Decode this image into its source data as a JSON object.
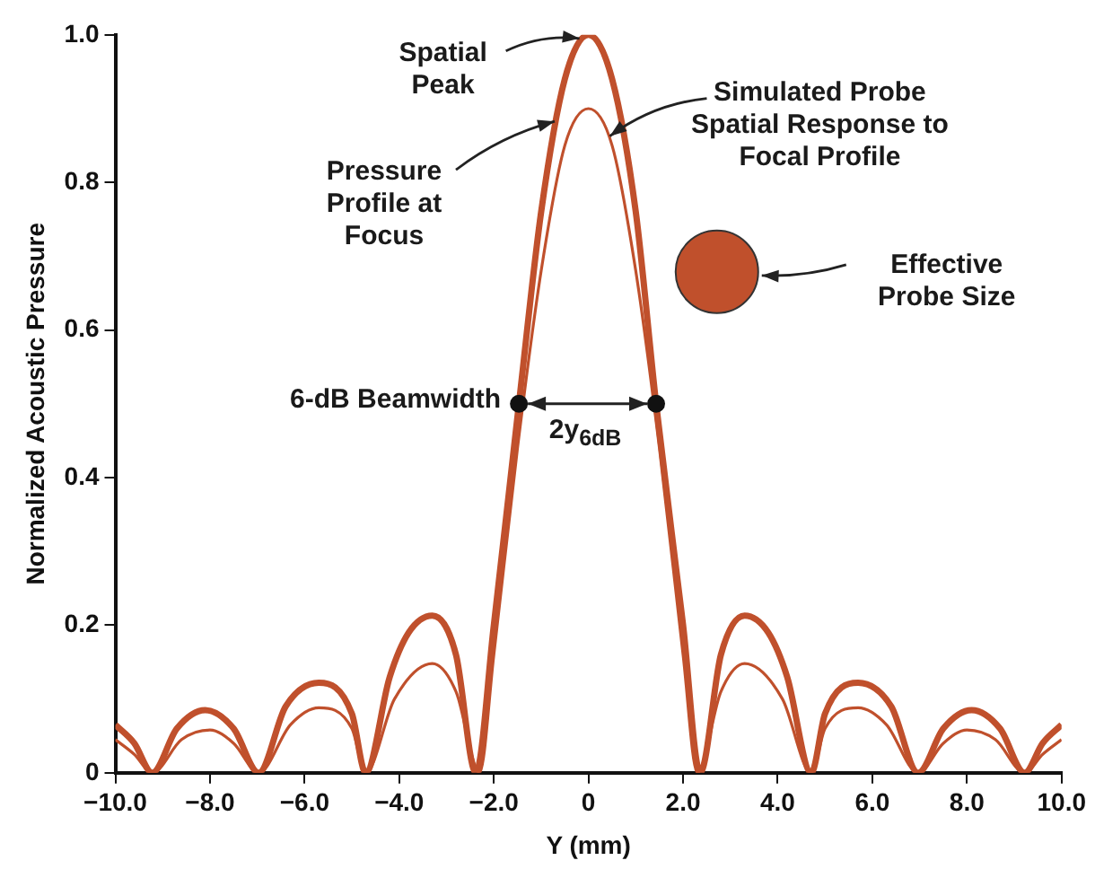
{
  "chart_data": {
    "type": "line",
    "xlabel": "Y (mm)",
    "ylabel": "Normalized Acoustic Pressure",
    "xlim": [
      -10,
      10
    ],
    "ylim": [
      0,
      1
    ],
    "xticks": [
      {
        "value": -10,
        "label": "−10.0"
      },
      {
        "value": -8,
        "label": "−8.0"
      },
      {
        "value": -6,
        "label": "−6.0"
      },
      {
        "value": -4,
        "label": "−4.0"
      },
      {
        "value": -2,
        "label": "−2.0"
      },
      0,
      {
        "value": 2,
        "label": "2.0"
      },
      {
        "value": 4,
        "label": "4.0"
      },
      {
        "value": 6,
        "label": "6.0"
      },
      {
        "value": 8,
        "label": "8.0"
      },
      {
        "value": 10,
        "label": "10.0"
      }
    ],
    "yticks": [
      0,
      0.2,
      0.4,
      0.6,
      0.8,
      {
        "value": 1,
        "label": "1.0"
      }
    ],
    "grid": false,
    "legend": false,
    "marker": "none",
    "line_style": "solid",
    "series": [
      {
        "color": "#c0502c",
        "x": [
          -10,
          -9.6,
          -9.22,
          -8.7,
          -8.1,
          -7.5,
          -6.97,
          -6.4,
          -5.7,
          -5.0,
          -4.71,
          -4.2,
          -3.8,
          -3.3,
          -2.8,
          -2.38,
          -2.0,
          -1.47,
          -1.0,
          -0.5,
          0,
          0.5,
          1.0,
          1.43,
          2.0,
          2.36,
          2.8,
          3.3,
          3.8,
          4.2,
          4.71,
          5.0,
          5.7,
          6.4,
          6.97,
          7.5,
          8.1,
          8.7,
          9.22,
          9.6,
          10
        ],
        "values": [
          0.065,
          0.04,
          0,
          0.06,
          0.085,
          0.06,
          0,
          0.09,
          0.122,
          0.08,
          0,
          0.13,
          0.19,
          0.213,
          0.16,
          0,
          0.2,
          0.5,
          0.76,
          0.94,
          1.0,
          0.94,
          0.76,
          0.5,
          0.2,
          0,
          0.16,
          0.213,
          0.19,
          0.13,
          0,
          0.08,
          0.122,
          0.09,
          0,
          0.06,
          0.085,
          0.06,
          0,
          0.04,
          0.065
        ]
      },
      {
        "color": "#c0502c",
        "x": [
          -10,
          -9.6,
          -9.22,
          -8.6,
          -8.0,
          -7.5,
          -6.97,
          -6.3,
          -5.7,
          -5.0,
          -4.71,
          -4.1,
          -3.3,
          -2.8,
          -2.3,
          -2.0,
          -1.5,
          -1.0,
          -0.5,
          0,
          0.5,
          1.0,
          1.5,
          2.0,
          2.3,
          2.8,
          3.3,
          4.1,
          4.71,
          5.0,
          5.7,
          6.3,
          6.97,
          7.5,
          8.0,
          8.6,
          9.22,
          9.6,
          10
        ],
        "values": [
          0.045,
          0.025,
          0,
          0.045,
          0.058,
          0.04,
          0,
          0.065,
          0.088,
          0.06,
          0,
          0.1,
          0.148,
          0.11,
          0,
          0.16,
          0.44,
          0.68,
          0.85,
          0.9,
          0.85,
          0.68,
          0.44,
          0.16,
          0,
          0.11,
          0.148,
          0.1,
          0,
          0.06,
          0.088,
          0.065,
          0,
          0.04,
          0.058,
          0.045,
          0,
          0.025,
          0.045
        ]
      },
      {
        "type": "scatter",
        "color": "#111111",
        "marker": "circle",
        "x": [
          -1.47,
          1.43
        ],
        "values": [
          0.5,
          0.5
        ]
      }
    ],
    "annotations": [
      {
        "text": "Spatial Peak",
        "x": 0,
        "y": 1.0
      },
      {
        "text": "Simulated Probe Spatial Response to Focal Profile",
        "x": 0.3,
        "y": 0.87
      },
      {
        "text": "Pressure Profile at Focus",
        "x": -0.6,
        "y": 0.89
      },
      "Effective Probe Size",
      {
        "text": "6-dB Beamwidth",
        "x": -1.47,
        "y": 0.5
      },
      {
        "text": "2y$_{6dB}$",
        "x": -1.47,
        "y": 0.5
      }
    ]
  }
}
